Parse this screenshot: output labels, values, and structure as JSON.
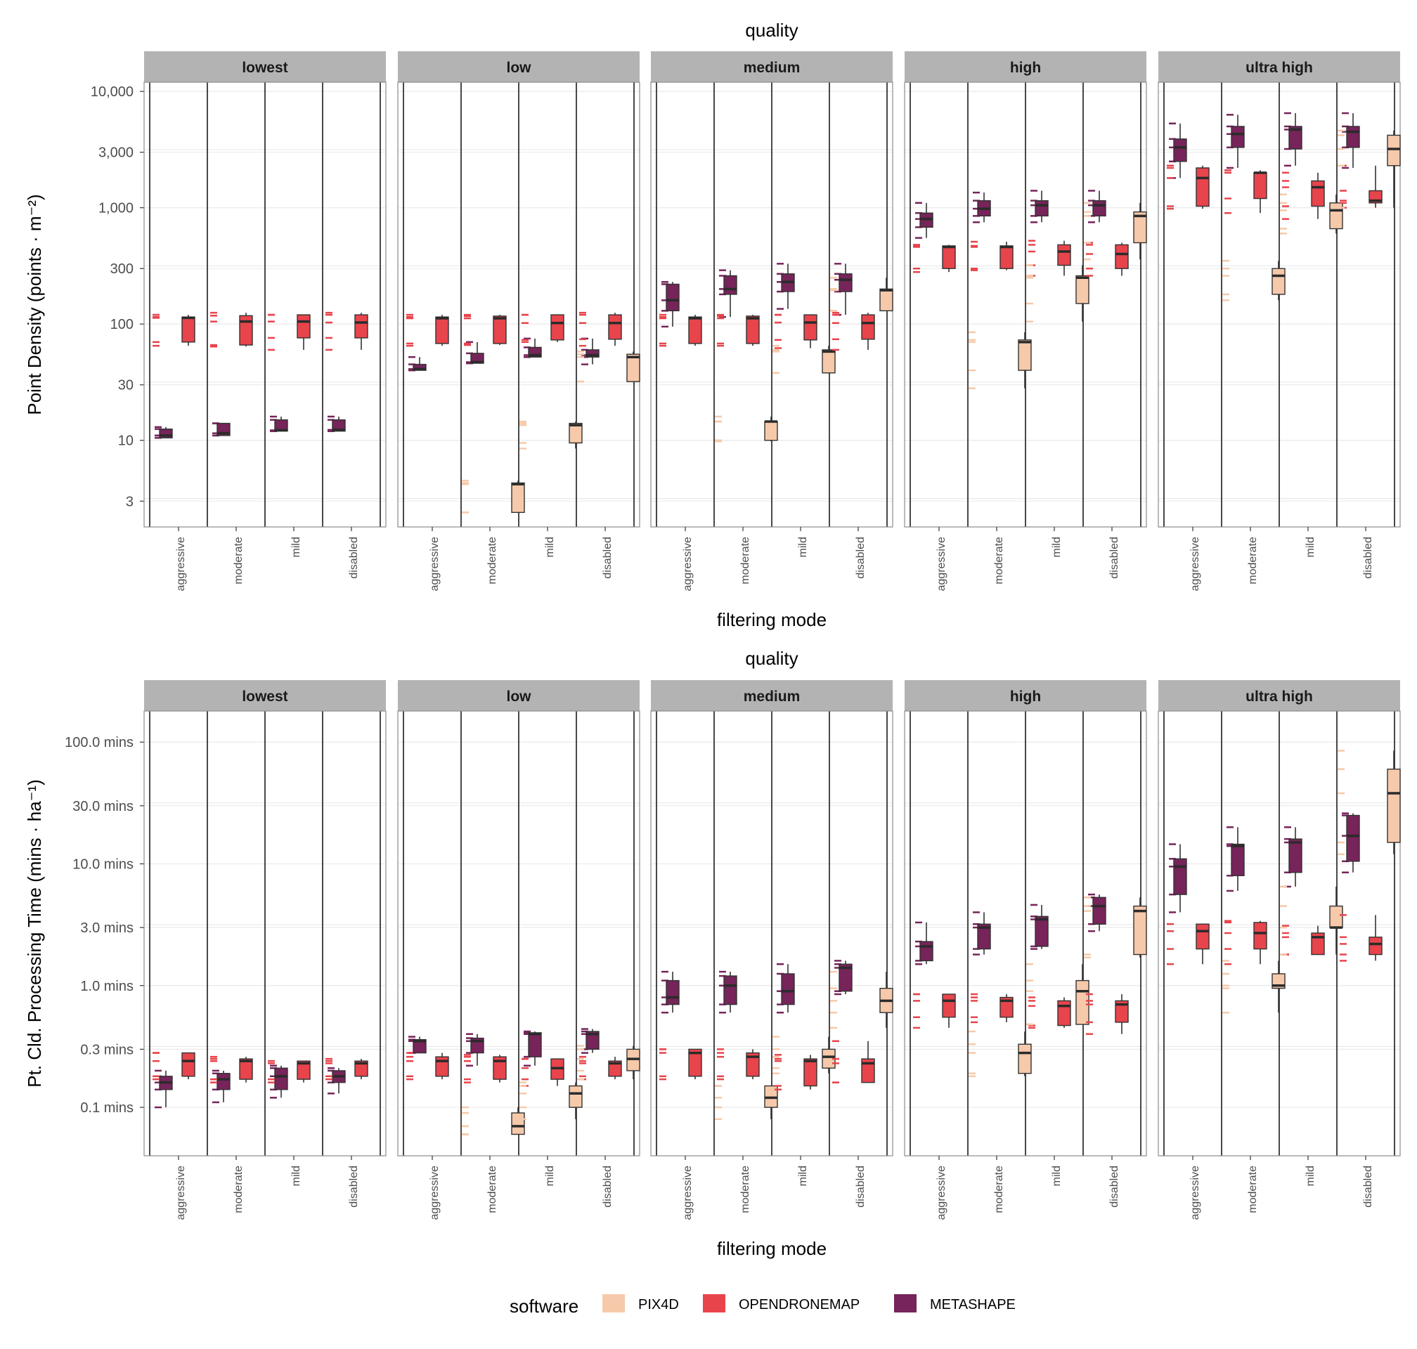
{
  "chart_data": [
    {
      "type": "box",
      "facet_title": "quality",
      "facets": [
        "lowest",
        "low",
        "medium",
        "high",
        "ultra high"
      ],
      "categories": [
        "aggressive",
        "moderate",
        "mild",
        "disabled"
      ],
      "xlabel": "filtering mode",
      "ylabel": "Point Density (points · m⁻²)",
      "y_scale": "log",
      "ylim": [
        1.8,
        12000
      ],
      "y_ticks": [
        3,
        10,
        30,
        100,
        300,
        1000,
        3000,
        10000
      ],
      "y_tick_labels": [
        "3",
        "10",
        "30",
        "100",
        "300",
        "1,000",
        "3,000",
        "10,000"
      ],
      "series": [
        {
          "name": "METASHAPE",
          "boxes": [
            [
              [
                11,
                10.5,
                11,
                12.5,
                13
              ],
              [
                11,
                11,
                11.5,
                14,
                14
              ],
              [
                12,
                12,
                12.2,
                15,
                16
              ],
              [
                12,
                12,
                12.3,
                15,
                16
              ]
            ],
            [
              [
                40,
                40,
                41,
                45,
                52
              ],
              [
                46,
                46,
                47,
                56,
                70
              ],
              [
                52,
                52,
                54,
                63,
                75
              ],
              [
                45,
                52,
                54,
                60,
                75
              ]
            ],
            [
              [
                95,
                130,
                160,
                220,
                230
              ],
              [
                115,
                180,
                200,
                260,
                290
              ],
              [
                135,
                190,
                230,
                270,
                330
              ],
              [
                120,
                190,
                240,
                270,
                330
              ]
            ],
            [
              [
                550,
                680,
                800,
                900,
                1100
              ],
              [
                750,
                850,
                980,
                1150,
                1350
              ],
              [
                750,
                850,
                1050,
                1150,
                1400
              ],
              [
                750,
                850,
                1050,
                1150,
                1400
              ]
            ],
            [
              [
                1800,
                2500,
                3300,
                3900,
                5300
              ],
              [
                2200,
                3300,
                4300,
                5000,
                6300
              ],
              [
                2300,
                3200,
                4700,
                5000,
                6500
              ],
              [
                2200,
                3300,
                4500,
                5000,
                6500
              ]
            ]
          ]
        },
        {
          "name": "OPENDRONEMAP",
          "boxes": [
            [
              [
                65,
                70,
                113,
                115,
                120
              ],
              [
                64,
                66,
                105,
                118,
                125
              ],
              [
                60,
                76,
                105,
                120,
                120
              ],
              [
                60,
                76,
                103,
                120,
                125
              ]
            ],
            [
              [
                65,
                68,
                112,
                115,
                120
              ],
              [
                66,
                68,
                112,
                117,
                120
              ],
              [
                70,
                73,
                102,
                120,
                120
              ],
              [
                65,
                74,
                102,
                120,
                125
              ]
            ],
            [
              [
                65,
                68,
                112,
                115,
                120
              ],
              [
                65,
                68,
                112,
                117,
                120
              ],
              [
                62,
                73,
                103,
                120,
                120
              ],
              [
                60,
                74,
                102,
                120,
                125
              ]
            ],
            [
              [
                280,
                300,
                460,
                470,
                480
              ],
              [
                290,
                300,
                460,
                470,
                510
              ],
              [
                260,
                320,
                420,
                480,
                520
              ],
              [
                260,
                300,
                400,
                480,
                500
              ]
            ],
            [
              [
                980,
                1030,
                1800,
                2200,
                2300
              ],
              [
                900,
                1200,
                2000,
                2000,
                2100
              ],
              [
                800,
                1030,
                1500,
                1700,
                2000
              ],
              [
                1000,
                1100,
                1150,
                1400,
                2300
              ]
            ]
          ]
        },
        {
          "name": "PIX4D",
          "boxes": [
            null,
            [
              null,
              [
                2.4,
                2.4,
                4.2,
                4.3,
                4.5
              ],
              [
                8.5,
                9.5,
                13.5,
                14,
                14.5
              ],
              [
                32,
                32,
                52,
                55,
                58
              ]
            ],
            [
              null,
              [
                9.8,
                10,
                14.5,
                14.5,
                16
              ],
              [
                38,
                38,
                58,
                60,
                65
              ],
              [
                130,
                130,
                195,
                200,
                250
              ]
            ],
            [
              null,
              [
                28,
                40,
                70,
                73,
                85
              ],
              [
                105,
                150,
                250,
                260,
                320
              ],
              [
                360,
                500,
                850,
                920,
                1100
              ]
            ],
            [
              null,
              [
                160,
                180,
                260,
                300,
                350
              ],
              [
                600,
                660,
                950,
                1100,
                1300
              ],
              [
                1000,
                2300,
                3200,
                4200,
                4600
              ]
            ]
          ]
        }
      ]
    },
    {
      "type": "box",
      "facet_title": "quality",
      "facets": [
        "lowest",
        "low",
        "medium",
        "high",
        "ultra high"
      ],
      "categories": [
        "aggressive",
        "moderate",
        "mild",
        "disabled"
      ],
      "xlabel": "filtering mode",
      "ylabel": "Pt. Cld. Processing Time (mins · ha⁻¹)",
      "y_scale": "log",
      "ylim": [
        0.04,
        180
      ],
      "y_ticks": [
        0.1,
        0.3,
        1,
        3,
        10,
        30,
        100
      ],
      "y_tick_labels": [
        "0.1 mins",
        "0.3 mins",
        "1.0 mins",
        "3.0 mins",
        "10.0 mins",
        "30.0 mins",
        "100.0 mins"
      ],
      "series": [
        {
          "name": "METASHAPE",
          "boxes": [
            [
              [
                0.1,
                0.14,
                0.16,
                0.18,
                0.2
              ],
              [
                0.11,
                0.14,
                0.17,
                0.19,
                0.2
              ],
              [
                0.12,
                0.14,
                0.18,
                0.21,
                0.22
              ],
              [
                0.13,
                0.16,
                0.18,
                0.2,
                0.21
              ]
            ],
            [
              [
                0.28,
                0.28,
                0.35,
                0.36,
                0.38
              ],
              [
                0.22,
                0.28,
                0.35,
                0.37,
                0.4
              ],
              [
                0.22,
                0.26,
                0.4,
                0.41,
                0.42
              ],
              [
                0.28,
                0.3,
                0.4,
                0.42,
                0.44
              ]
            ],
            [
              [
                0.6,
                0.7,
                0.8,
                1.1,
                1.3
              ],
              [
                0.6,
                0.7,
                1.0,
                1.2,
                1.3
              ],
              [
                0.6,
                0.7,
                0.9,
                1.25,
                1.5
              ],
              [
                0.85,
                0.9,
                1.4,
                1.5,
                1.6
              ]
            ],
            [
              [
                1.5,
                1.6,
                2.1,
                2.3,
                3.3
              ],
              [
                1.8,
                2.0,
                3.0,
                3.2,
                4.0
              ],
              [
                2.0,
                2.1,
                3.5,
                3.7,
                4.6
              ],
              [
                2.8,
                3.2,
                4.5,
                5.3,
                5.6
              ]
            ],
            [
              [
                4.0,
                5.6,
                9.5,
                11.0,
                14.5
              ],
              [
                6.0,
                8.0,
                14.0,
                14.5,
                20.0
              ],
              [
                6.5,
                8.5,
                15.0,
                16.0,
                20.0
              ],
              [
                8.5,
                10.5,
                17.0,
                25.0,
                26.0
              ]
            ]
          ]
        },
        {
          "name": "OPENDRONEMAP",
          "boxes": [
            [
              [
                0.17,
                0.18,
                0.24,
                0.28,
                0.28
              ],
              [
                0.16,
                0.17,
                0.24,
                0.25,
                0.26
              ],
              [
                0.16,
                0.17,
                0.23,
                0.24,
                0.24
              ],
              [
                0.17,
                0.18,
                0.23,
                0.24,
                0.25
              ]
            ],
            [
              [
                0.17,
                0.18,
                0.24,
                0.26,
                0.28
              ],
              [
                0.16,
                0.17,
                0.24,
                0.26,
                0.27
              ],
              [
                0.15,
                0.17,
                0.21,
                0.25,
                0.25
              ],
              [
                0.17,
                0.18,
                0.23,
                0.24,
                0.26
              ]
            ],
            [
              [
                0.17,
                0.18,
                0.28,
                0.3,
                0.3
              ],
              [
                0.17,
                0.18,
                0.26,
                0.28,
                0.3
              ],
              [
                0.14,
                0.15,
                0.24,
                0.25,
                0.27
              ],
              [
                0.16,
                0.16,
                0.23,
                0.25,
                0.35
              ]
            ],
            [
              [
                0.45,
                0.55,
                0.75,
                0.85,
                0.85
              ],
              [
                0.5,
                0.55,
                0.75,
                0.8,
                0.85
              ],
              [
                0.45,
                0.47,
                0.68,
                0.75,
                0.8
              ],
              [
                0.4,
                0.5,
                0.7,
                0.75,
                0.85
              ]
            ],
            [
              [
                1.5,
                2.0,
                2.8,
                3.2,
                3.2
              ],
              [
                1.5,
                2.0,
                2.7,
                3.3,
                3.4
              ],
              [
                1.8,
                1.8,
                2.5,
                2.7,
                3.1
              ],
              [
                1.6,
                1.8,
                2.2,
                2.5,
                3.8
              ]
            ]
          ]
        },
        {
          "name": "PIX4D",
          "boxes": [
            null,
            [
              null,
              [
                0.06,
                0.06,
                0.07,
                0.09,
                0.1
              ],
              [
                0.08,
                0.1,
                0.13,
                0.15,
                0.16
              ],
              [
                0.17,
                0.2,
                0.25,
                0.3,
                0.32
              ]
            ],
            [
              null,
              [
                0.08,
                0.1,
                0.12,
                0.15,
                0.15
              ],
              [
                0.19,
                0.21,
                0.26,
                0.3,
                0.38
              ],
              [
                0.45,
                0.6,
                0.75,
                0.95,
                1.3
              ]
            ],
            [
              null,
              [
                0.18,
                0.19,
                0.28,
                0.33,
                0.42
              ],
              [
                0.48,
                0.48,
                0.9,
                1.1,
                1.5
              ],
              [
                1.7,
                1.8,
                4.1,
                4.5,
                5.3
              ]
            ],
            [
              null,
              [
                0.6,
                0.95,
                1.0,
                1.25,
                1.6
              ],
              [
                1.8,
                3.0,
                3.0,
                4.5,
                6.5
              ],
              [
                12.0,
                15.0,
                38.0,
                60.0,
                85.0
              ]
            ]
          ]
        }
      ]
    }
  ],
  "legend": {
    "title": "software",
    "items": [
      {
        "label": "PIX4D",
        "color": "#F6C9AA"
      },
      {
        "label": "OPENDRONEMAP",
        "color": "#E8444B"
      },
      {
        "label": "METASHAPE",
        "color": "#76245A"
      }
    ]
  },
  "colors": {
    "PIX4D": "#F6C9AA",
    "OPENDRONEMAP": "#E8444B",
    "METASHAPE": "#76245A",
    "strip": "#B3B3B3",
    "gridline": "#E5E5E5"
  }
}
